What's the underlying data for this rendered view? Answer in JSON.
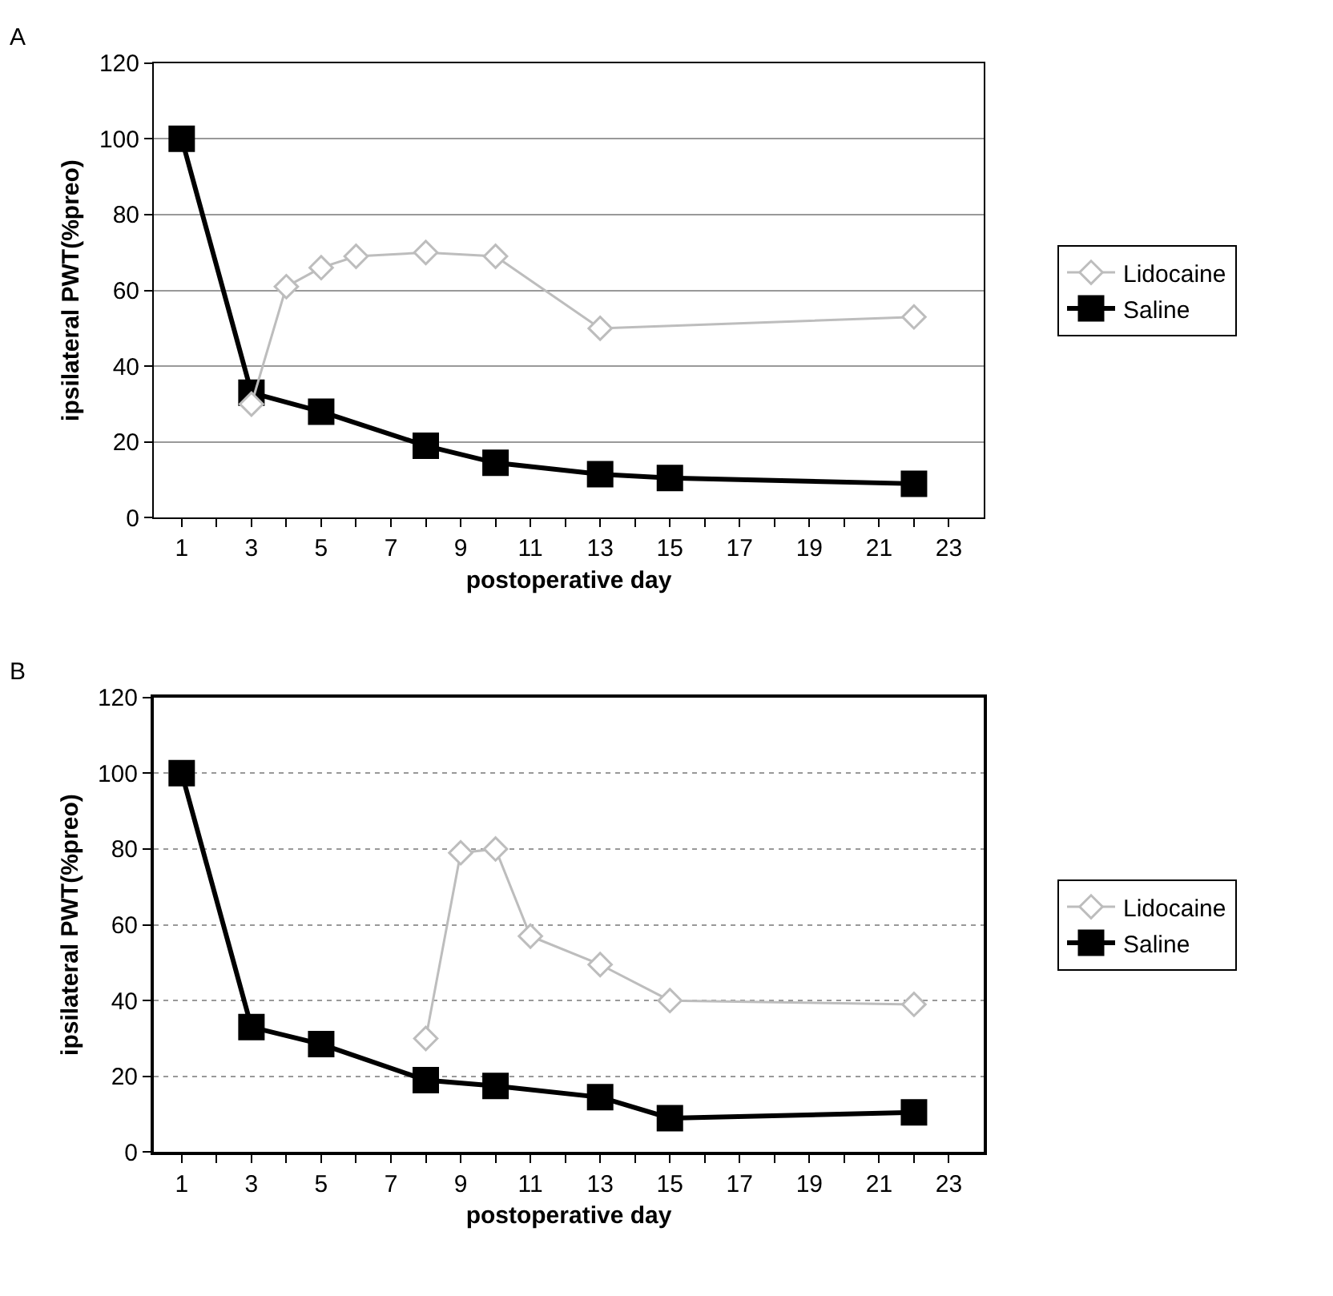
{
  "chart_data": [
    {
      "type": "line",
      "title": "A",
      "xlabel": "postoperative day",
      "ylabel": "ipsilateral PWT(%preo)",
      "xlim": [
        0.2,
        24
      ],
      "xticks": [
        1,
        {
          "value": 2,
          "label": null
        },
        3,
        {
          "value": 4,
          "label": null
        },
        5,
        {
          "value": 6,
          "label": null
        },
        7,
        {
          "value": 8,
          "label": null
        },
        9,
        {
          "value": 10,
          "label": null
        },
        11,
        {
          "value": 12,
          "label": null
        },
        13,
        {
          "value": 14,
          "label": null
        },
        15,
        {
          "value": 16,
          "label": null
        },
        17,
        {
          "value": 18,
          "label": null
        },
        19,
        {
          "value": 20,
          "label": null
        },
        21,
        {
          "value": 22,
          "label": null
        },
        23
      ],
      "ylim": [
        0,
        120
      ],
      "yticks": [
        0,
        20,
        40,
        60,
        80,
        100,
        120
      ],
      "grid": "y",
      "legend": "right",
      "series": [
        {
          "name": "Lidocaine",
          "color": "#bdbdbd",
          "marker": "diamond",
          "x": [
            3,
            4,
            5,
            6,
            8,
            10,
            13,
            22
          ],
          "values": [
            30,
            61,
            66,
            69,
            70,
            69,
            50,
            53
          ]
        },
        {
          "name": "Saline",
          "color": "#000000",
          "marker": "square",
          "x": [
            1,
            3,
            5,
            8,
            10,
            13,
            15,
            22
          ],
          "values": [
            100,
            33,
            28,
            19,
            14.5,
            11.5,
            10.5,
            9
          ]
        }
      ]
    },
    {
      "type": "line",
      "title": "B",
      "xlabel": "postoperative day",
      "ylabel": "ipsilateral PWT(%preo)",
      "xlim": [
        0.2,
        24
      ],
      "xticks": [
        1,
        {
          "value": 2,
          "label": null
        },
        3,
        {
          "value": 4,
          "label": null
        },
        5,
        {
          "value": 6,
          "label": null
        },
        7,
        {
          "value": 8,
          "label": null
        },
        9,
        {
          "value": 10,
          "label": null
        },
        11,
        {
          "value": 12,
          "label": null
        },
        13,
        {
          "value": 14,
          "label": null
        },
        15,
        {
          "value": 16,
          "label": null
        },
        17,
        {
          "value": 18,
          "label": null
        },
        19,
        {
          "value": 20,
          "label": null
        },
        21,
        {
          "value": 22,
          "label": null
        },
        23
      ],
      "ylim": [
        0,
        120
      ],
      "yticks": [
        0,
        20,
        40,
        60,
        80,
        100,
        120
      ],
      "grid": "y",
      "legend": "right",
      "series": [
        {
          "name": "Lidocaine",
          "color": "#bdbdbd",
          "marker": "diamond",
          "x": [
            8,
            9,
            10,
            11,
            13,
            15,
            22
          ],
          "values": [
            30,
            79,
            80,
            57,
            49.5,
            40,
            39
          ]
        },
        {
          "name": "Saline",
          "color": "#000000",
          "marker": "square",
          "x": [
            1,
            3,
            5,
            8,
            10,
            13,
            15,
            22
          ],
          "values": [
            100,
            33,
            28.5,
            19,
            17.5,
            14.5,
            9,
            10.5
          ]
        }
      ]
    }
  ]
}
